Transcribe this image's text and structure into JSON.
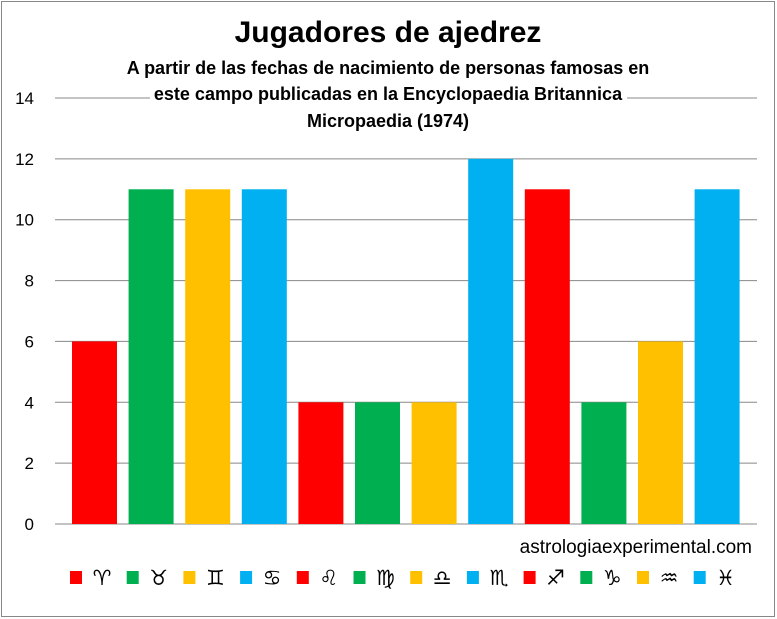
{
  "chart_data": {
    "type": "bar",
    "title": "Jugadores de ajedrez",
    "subtitle": [
      "A partir de las fechas de nacimiento de personas famosas en",
      "este campo publicadas en la Encyclopaedia Britannica",
      "Micropaedia (1974)"
    ],
    "categories": [
      "♈",
      "♉",
      "♊",
      "♋",
      "♌",
      "♍",
      "♎",
      "♏",
      "♐",
      "♑",
      "♒",
      "♓"
    ],
    "values": [
      6,
      11,
      11,
      11,
      4,
      4,
      4,
      12,
      11,
      4,
      6,
      11
    ],
    "colors": [
      "#FF0000",
      "#00B050",
      "#FFC000",
      "#00B0F0",
      "#FF0000",
      "#00B050",
      "#FFC000",
      "#00B0F0",
      "#FF0000",
      "#00B050",
      "#FFC000",
      "#00B0F0"
    ],
    "ylim": [
      0,
      14
    ],
    "yticks": [
      "0",
      "2",
      "4",
      "6",
      "8",
      "10",
      "12",
      "14"
    ],
    "grid": true,
    "legend": "bottom",
    "source": "astrologiaexperimental.com"
  }
}
